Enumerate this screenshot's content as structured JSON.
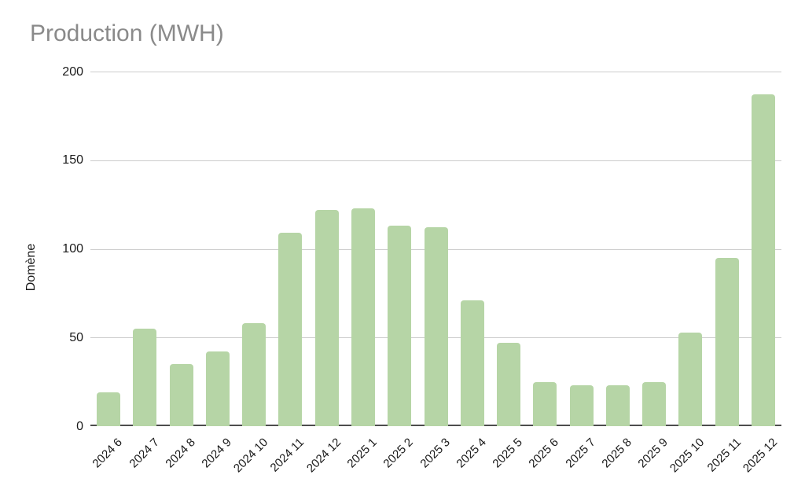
{
  "title": "Production (MWH)",
  "y_axis": {
    "label": "Domène"
  },
  "colors": {
    "bar": "#b6d5a6",
    "gridline": "#cccccc",
    "baseline": "#4d4d4d",
    "title_text": "#8a8a8a",
    "tick_text": "#1a1a1a",
    "background": "#ffffff"
  },
  "chart_data": {
    "type": "bar",
    "title": "Production (MWH)",
    "xlabel": "",
    "ylabel": "Domène",
    "ylim": [
      0,
      200
    ],
    "yticks": [
      0,
      50,
      100,
      150,
      200
    ],
    "grid": true,
    "legend": "none",
    "bar_color": "#b6d5a6",
    "categories": [
      "2024 6",
      "2024 7",
      "2024 8",
      "2024 9",
      "2024 10",
      "2024 11",
      "2024 12",
      "2025 1",
      "2025 2",
      "2025 3",
      "2025 4",
      "2025 5",
      "2025 6",
      "2025 7",
      "2025 8",
      "2025 9",
      "2025 10",
      "2025 11",
      "2025 12"
    ],
    "values": [
      19,
      55,
      35,
      42,
      58,
      109,
      122,
      123,
      113,
      112,
      71,
      47,
      25,
      23,
      23,
      25,
      53,
      95,
      187
    ]
  }
}
